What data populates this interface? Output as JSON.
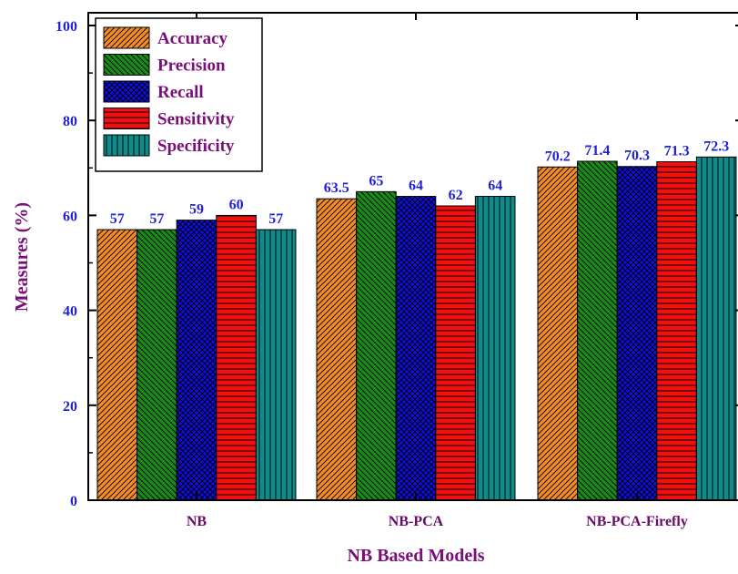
{
  "chart_data": {
    "type": "bar",
    "title": "",
    "xlabel": "NB Based Models",
    "ylabel": "Measures (%)",
    "ylim": [
      0,
      100
    ],
    "yticks": [
      0,
      20,
      40,
      60,
      80,
      100
    ],
    "categories": [
      "NB",
      "NB-PCA",
      "NB-PCA-Firefly"
    ],
    "legend_position": "top-left",
    "grid": false,
    "series": [
      {
        "name": "Accuracy",
        "color": "#f28c28",
        "pattern": "diag-right",
        "values": [
          57,
          63.5,
          70.2
        ],
        "labels": [
          "57",
          "63.5",
          "70.2"
        ]
      },
      {
        "name": "Precision",
        "color": "#1b8a1b",
        "pattern": "diag-left",
        "values": [
          57,
          65,
          71.4
        ],
        "labels": [
          "57",
          "65",
          "71.4"
        ]
      },
      {
        "name": "Recall",
        "color": "#1010d8",
        "pattern": "crosshatch",
        "values": [
          59,
          64,
          70.3
        ],
        "labels": [
          "59",
          "64",
          "70.3"
        ]
      },
      {
        "name": "Sensitivity",
        "color": "#ee1111",
        "pattern": "horizontal",
        "values": [
          60,
          62,
          71.3
        ],
        "labels": [
          "60",
          "62",
          "71.3"
        ]
      },
      {
        "name": "Specificity",
        "color": "#138a8a",
        "pattern": "vertical",
        "values": [
          57,
          64,
          72.3
        ],
        "labels": [
          "57",
          "64",
          "72.3"
        ]
      }
    ]
  }
}
